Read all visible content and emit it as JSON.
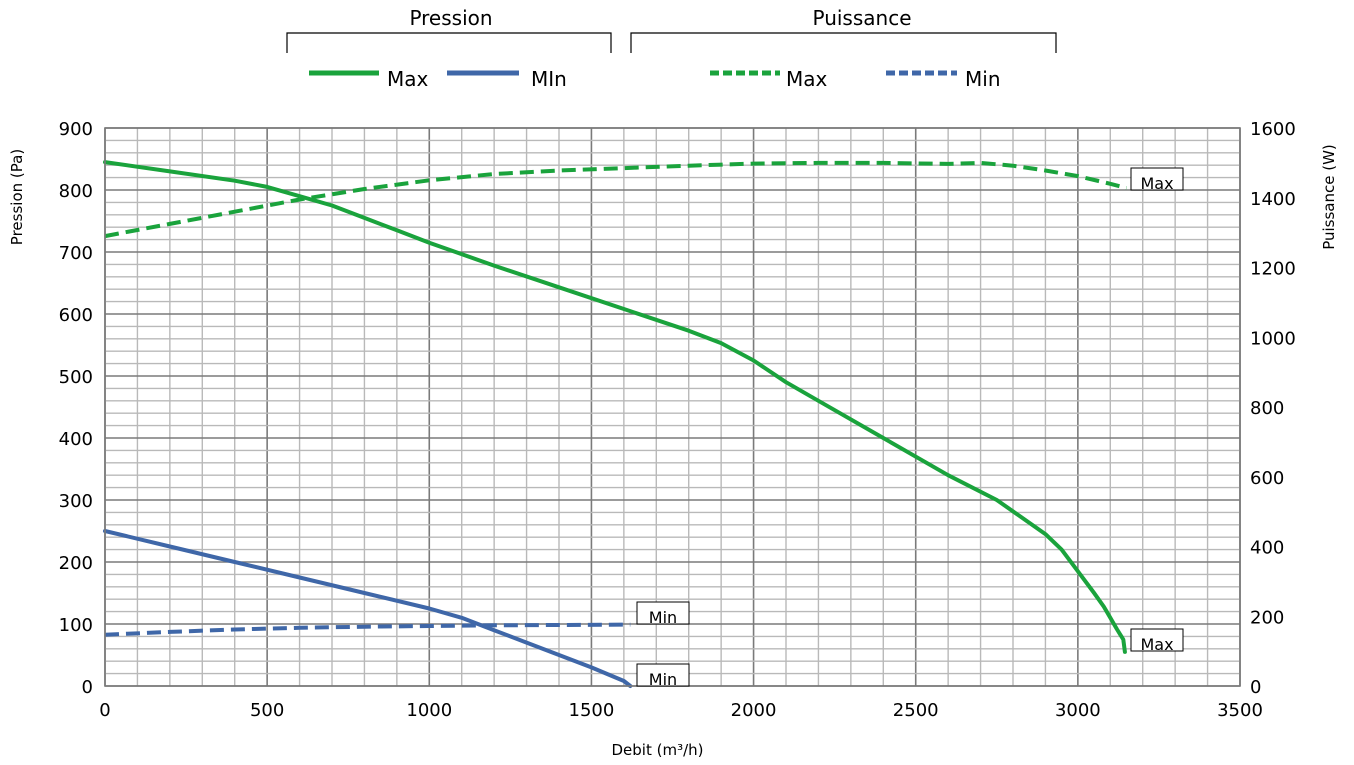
{
  "chart_data": {
    "type": "line",
    "xlabel": "Debit (m³/h)",
    "ylabel": "Pression (Pa)",
    "y2label": "Puissance (W)",
    "xlim": [
      0,
      3500
    ],
    "ylim": [
      0,
      900
    ],
    "y2lim": [
      0,
      1600
    ],
    "x_ticks": [
      0,
      500,
      1000,
      1500,
      2000,
      2500,
      3000,
      3500
    ],
    "y_ticks": [
      0,
      100,
      200,
      300,
      400,
      500,
      600,
      700,
      800,
      900
    ],
    "y2_ticks": [
      0,
      200,
      400,
      600,
      800,
      1000,
      1200,
      1400,
      1600
    ],
    "grid": true,
    "legend_groups": [
      {
        "title": "Pression",
        "entries": [
          "Max",
          "MIn"
        ]
      },
      {
        "title": "Puissance",
        "entries": [
          "Max",
          "Min"
        ]
      }
    ],
    "colors": {
      "green": "#1aa33c",
      "blue": "#3f67a8",
      "grid_major": "#7a7a7a",
      "grid_minor": "#b9b9b9"
    },
    "series": [
      {
        "name": "Max",
        "group": "Pression",
        "axis": "left",
        "color": "#1aa33c",
        "dash": "solid",
        "end_label": "Max",
        "x": [
          0,
          200,
          400,
          500,
          600,
          700,
          800,
          900,
          1000,
          1200,
          1400,
          1600,
          1800,
          1900,
          2000,
          2100,
          2200,
          2400,
          2600,
          2750,
          2900,
          2950,
          3000,
          3050,
          3080,
          3100,
          3120,
          3140,
          3145
        ],
        "y": [
          845,
          830,
          815,
          805,
          790,
          775,
          755,
          735,
          715,
          678,
          643,
          608,
          573,
          553,
          525,
          490,
          460,
          400,
          340,
          300,
          245,
          220,
          185,
          150,
          128,
          110,
          92,
          75,
          55
        ]
      },
      {
        "name": "MIn",
        "group": "Pression",
        "axis": "left",
        "color": "#3f67a8",
        "dash": "solid",
        "end_label": "Min",
        "x": [
          0,
          200,
          400,
          600,
          800,
          1000,
          1100,
          1200,
          1300,
          1400,
          1500,
          1600,
          1620
        ],
        "y": [
          250,
          225,
          200,
          175,
          150,
          125,
          110,
          90,
          70,
          50,
          30,
          8,
          0
        ]
      },
      {
        "name": "Max",
        "group": "Puissance",
        "axis": "right",
        "color": "#1aa33c",
        "dash": "dashed",
        "end_label": "Max",
        "x": [
          0,
          200,
          400,
          600,
          800,
          1000,
          1200,
          1400,
          1600,
          1800,
          2000,
          2200,
          2400,
          2600,
          2700,
          2800,
          2900,
          3000,
          3100,
          3150
        ],
        "y": [
          1290,
          1325,
          1360,
          1395,
          1425,
          1450,
          1468,
          1478,
          1485,
          1492,
          1498,
          1500,
          1500,
          1497,
          1500,
          1492,
          1478,
          1462,
          1440,
          1428
        ]
      },
      {
        "name": "Min",
        "group": "Puissance",
        "axis": "right",
        "color": "#3f67a8",
        "dash": "dashed",
        "end_label": "Min",
        "x": [
          0,
          200,
          400,
          600,
          800,
          1000,
          1200,
          1400,
          1620
        ],
        "y": [
          147,
          155,
          162,
          167,
          170,
          172,
          174,
          175,
          176
        ]
      }
    ]
  }
}
